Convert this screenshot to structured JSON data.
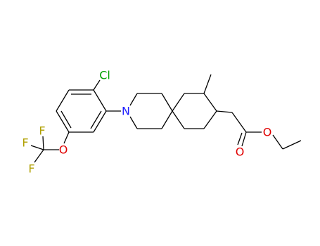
{
  "molecule": {
    "atoms": [
      "Cl",
      "N",
      "O",
      "F",
      "F",
      "F",
      "O",
      "O"
    ]
  }
}
